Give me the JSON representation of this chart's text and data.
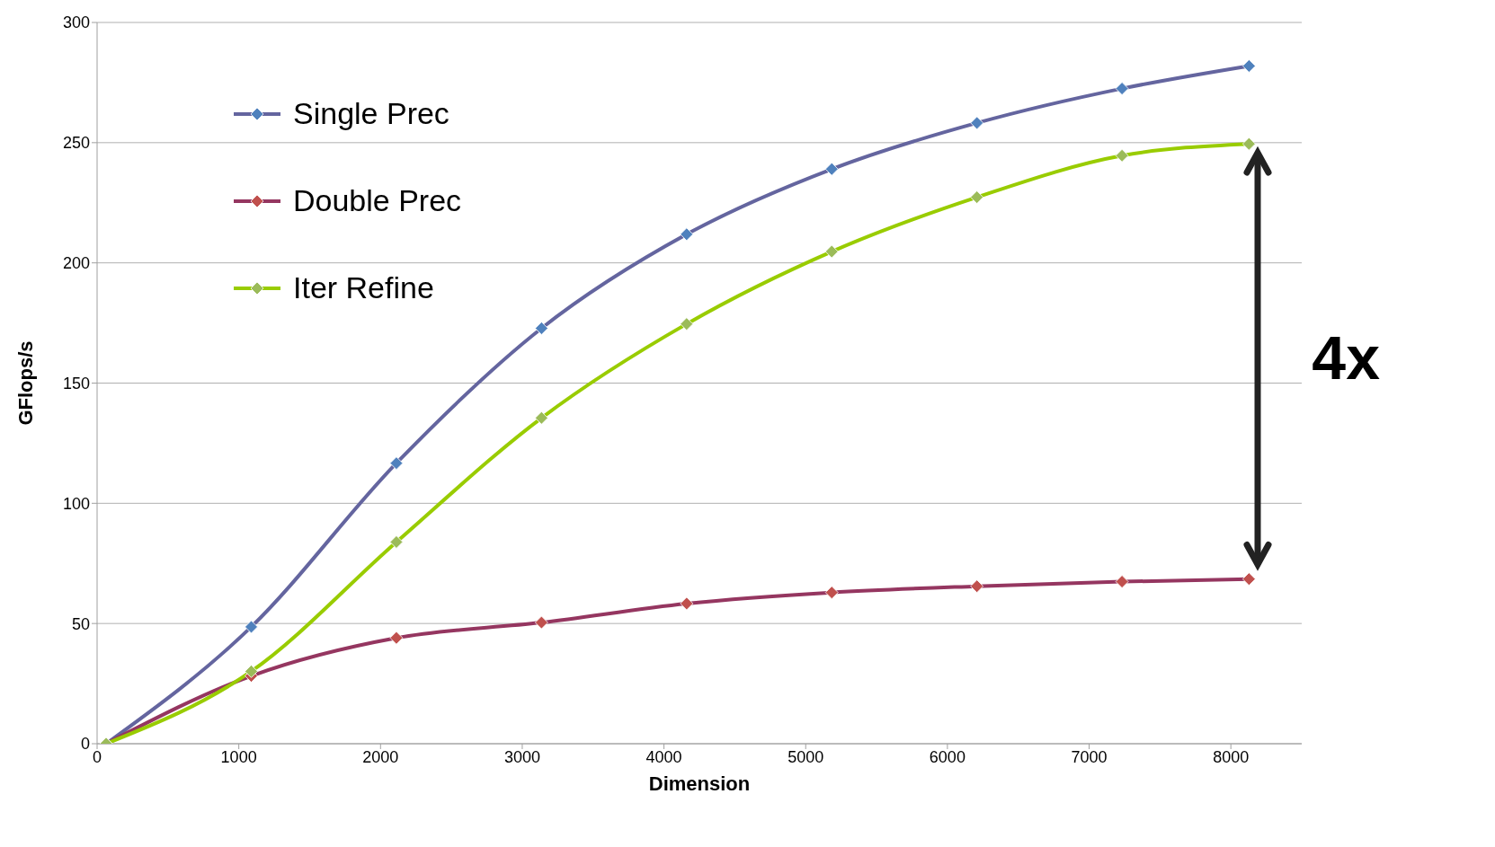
{
  "chart_data": {
    "type": "line",
    "xlabel": "Dimension",
    "ylabel": "GFlops/s",
    "x": [
      64,
      1088,
      2112,
      3136,
      4160,
      5184,
      6208,
      7232,
      8128
    ],
    "series": [
      {
        "name": "Single Prec",
        "color": "#64659f",
        "values": [
          0,
          48.6,
          116.7,
          172.8,
          211.9,
          239,
          258.2,
          272.5,
          281.9
        ]
      },
      {
        "name": "Double Prec",
        "color": "#953660",
        "values": [
          0,
          28.2,
          44,
          50.4,
          58.3,
          62.9,
          65.5,
          67.4,
          68.5
        ]
      },
      {
        "name": "Iter Refine",
        "color": "#99cc00",
        "values": [
          0,
          30.1,
          83.9,
          135.5,
          174.6,
          204.7,
          227.3,
          244.6,
          249.5
        ]
      }
    ],
    "xlim": [
      0,
      8500
    ],
    "xticks": [
      0,
      1000,
      2000,
      3000,
      4000,
      5000,
      6000,
      7000,
      8000
    ],
    "ylim": [
      0,
      300
    ],
    "yticks": [
      0,
      50,
      100,
      150,
      200,
      250,
      300
    ],
    "grid": "y",
    "legend": "top left",
    "marker": "diamond",
    "line_style": "solid",
    "annotations": [
      "4x"
    ]
  }
}
